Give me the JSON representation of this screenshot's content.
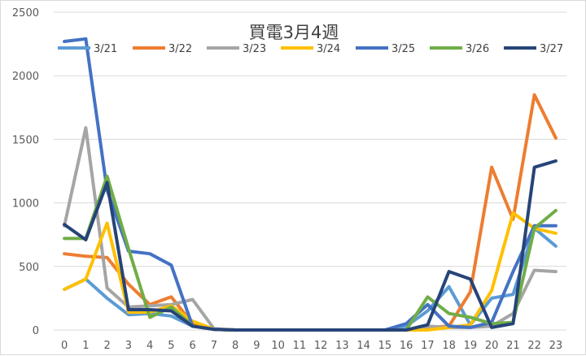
{
  "chart_data": {
    "type": "line",
    "title": "買電3月4週",
    "xlabel": "",
    "ylabel": "",
    "x": [
      0,
      1,
      2,
      3,
      4,
      5,
      6,
      7,
      8,
      9,
      10,
      11,
      12,
      13,
      14,
      15,
      16,
      17,
      18,
      19,
      20,
      21,
      22,
      23
    ],
    "ylim": [
      0,
      2500
    ],
    "yticks": [
      0,
      500,
      1000,
      1500,
      2000,
      2500
    ],
    "grid": true,
    "legend_position": "top",
    "series": [
      {
        "name": "3/21",
        "color": "#5B9BD5",
        "values": [
          320,
          400,
          250,
          120,
          130,
          110,
          30,
          5,
          0,
          0,
          0,
          0,
          0,
          0,
          0,
          0,
          30,
          150,
          340,
          40,
          250,
          280,
          800,
          660
        ]
      },
      {
        "name": "3/22",
        "color": "#ED7D31",
        "values": [
          600,
          580,
          570,
          360,
          200,
          260,
          50,
          5,
          0,
          0,
          0,
          0,
          0,
          0,
          0,
          0,
          0,
          20,
          30,
          300,
          1280,
          870,
          1850,
          1510
        ]
      },
      {
        "name": "3/23",
        "color": "#A5A5A5",
        "values": [
          820,
          1590,
          330,
          180,
          190,
          200,
          240,
          10,
          0,
          0,
          0,
          0,
          0,
          0,
          0,
          0,
          0,
          30,
          20,
          20,
          30,
          130,
          470,
          460
        ]
      },
      {
        "name": "3/24",
        "color": "#FFC000",
        "values": [
          320,
          400,
          840,
          140,
          140,
          190,
          70,
          5,
          0,
          0,
          0,
          0,
          0,
          0,
          0,
          0,
          0,
          0,
          20,
          40,
          310,
          920,
          800,
          760
        ]
      },
      {
        "name": "3/25",
        "color": "#4472C4",
        "values": [
          2270,
          2290,
          1100,
          620,
          600,
          510,
          30,
          5,
          0,
          0,
          0,
          0,
          0,
          0,
          0,
          0,
          50,
          200,
          30,
          20,
          60,
          460,
          820,
          820
        ]
      },
      {
        "name": "3/26",
        "color": "#70AD47",
        "values": [
          720,
          720,
          1210,
          640,
          100,
          180,
          30,
          5,
          0,
          0,
          0,
          0,
          0,
          0,
          0,
          0,
          0,
          260,
          130,
          100,
          50,
          60,
          800,
          940
        ]
      },
      {
        "name": "3/27",
        "color": "#264478",
        "values": [
          830,
          710,
          1160,
          160,
          160,
          150,
          30,
          5,
          0,
          0,
          0,
          0,
          0,
          0,
          0,
          0,
          0,
          40,
          460,
          400,
          20,
          50,
          1280,
          1330
        ]
      }
    ]
  }
}
